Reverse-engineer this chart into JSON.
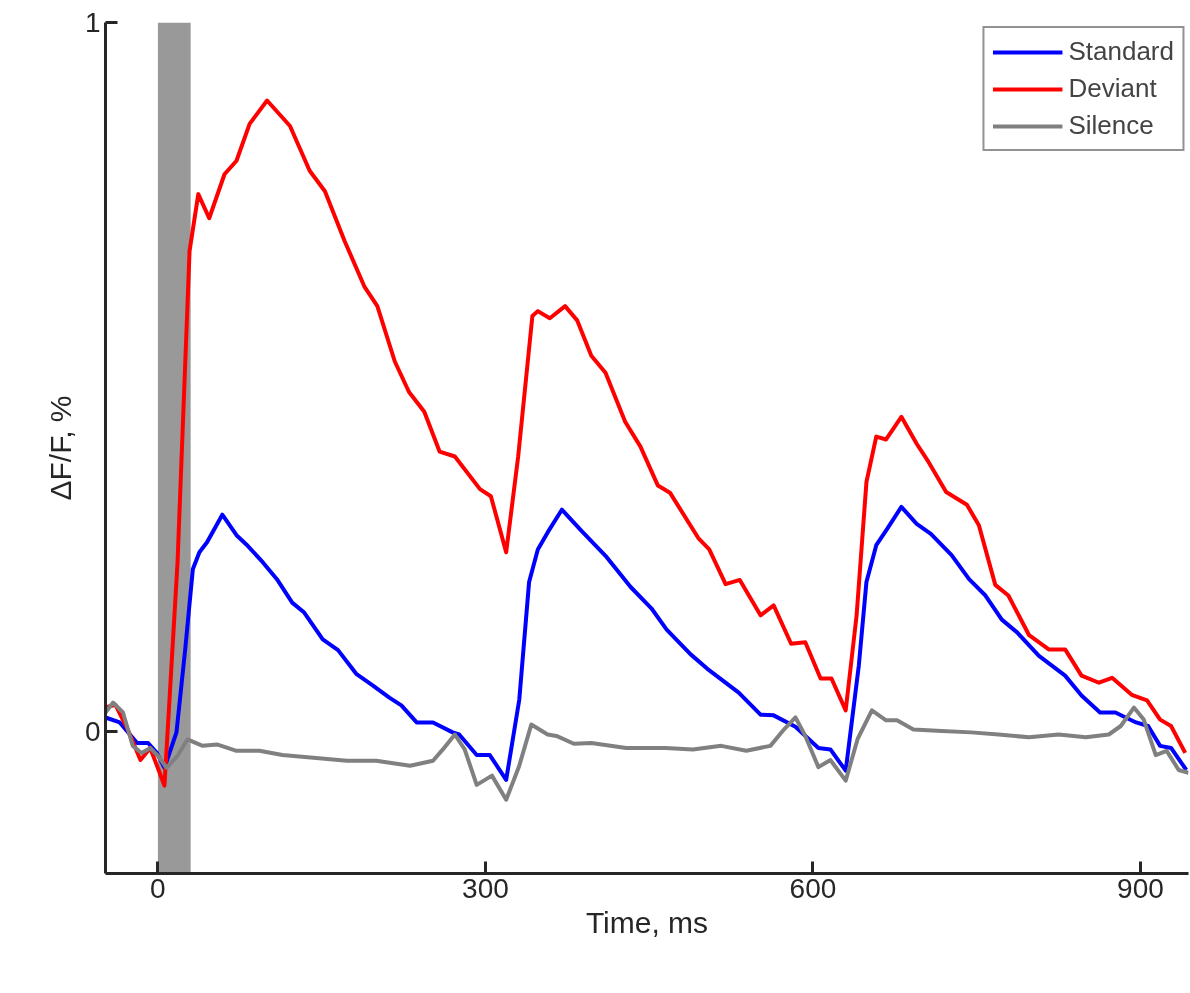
{
  "chart_data": {
    "type": "line",
    "xlabel": "Time, ms",
    "ylabel": "ΔF/F, %",
    "xlim": [
      -48,
      944
    ],
    "ylim": [
      -0.2,
      1
    ],
    "xticks": [
      0,
      300,
      600,
      900
    ],
    "yticks": [
      0,
      1
    ],
    "grid": false,
    "legend": "top right",
    "line_style": "solid",
    "marker": "none",
    "bands": [
      {
        "axis": "x",
        "from": 0,
        "to": 30,
        "label": null,
        "color": "#999999"
      }
    ],
    "series": [
      {
        "name": "Standard",
        "color": "#0000ff",
        "x": [
          -48,
          -35,
          -19,
          -9,
          -1,
          6,
          17,
          25,
          32,
          38,
          45,
          59,
          72,
          81,
          96,
          109,
          123,
          134,
          151,
          165,
          182,
          197,
          212,
          223,
          237,
          252,
          270,
          276,
          292,
          304,
          319,
          331,
          340,
          348,
          357,
          370,
          388,
          410,
          433,
          452,
          466,
          488,
          503,
          532,
          552,
          564,
          584,
          605,
          616,
          630,
          642,
          649,
          658,
          668,
          681,
          695,
          708,
          727,
          743,
          758,
          773,
          787,
          807,
          831,
          846,
          863,
          877,
          896,
          907,
          918,
          928,
          942
        ],
        "values": [
          0.02,
          0.013,
          -0.016,
          -0.016,
          -0.03,
          -0.051,
          -0.001,
          0.116,
          0.229,
          0.253,
          0.267,
          0.306,
          0.277,
          0.264,
          0.239,
          0.215,
          0.182,
          0.168,
          0.13,
          0.115,
          0.081,
          0.065,
          0.048,
          0.037,
          0.013,
          0.013,
          -0.001,
          -0.004,
          -0.033,
          -0.033,
          -0.068,
          0.045,
          0.211,
          0.257,
          0.281,
          0.313,
          0.283,
          0.248,
          0.204,
          0.174,
          0.144,
          0.109,
          0.089,
          0.055,
          0.024,
          0.023,
          0.007,
          -0.023,
          -0.025,
          -0.055,
          0.093,
          0.211,
          0.263,
          0.286,
          0.317,
          0.293,
          0.279,
          0.249,
          0.215,
          0.192,
          0.158,
          0.14,
          0.107,
          0.079,
          0.051,
          0.027,
          0.027,
          0.013,
          0.008,
          -0.02,
          -0.023,
          -0.054
        ]
      },
      {
        "name": "Deviant",
        "color": "#ff0000",
        "x": [
          -48,
          -39,
          -27,
          -16,
          -7,
          6,
          18,
          29,
          37,
          47,
          61,
          72,
          84,
          100,
          121,
          139,
          153,
          171,
          189,
          201,
          217,
          230,
          244,
          258,
          272,
          295,
          305,
          319,
          330,
          343,
          348,
          359,
          373,
          384,
          397,
          410,
          428,
          442,
          458,
          469,
          495,
          505,
          520,
          533,
          552,
          564,
          580,
          593,
          607,
          617,
          630,
          640,
          649,
          658,
          667,
          681,
          695,
          706,
          722,
          741,
          752,
          767,
          779,
          798,
          816,
          831,
          846,
          862,
          874,
          892,
          906,
          918,
          928,
          941
        ],
        "values": [
          0.034,
          0.038,
          0.001,
          -0.04,
          -0.023,
          -0.076,
          0.239,
          0.678,
          0.758,
          0.724,
          0.786,
          0.805,
          0.857,
          0.89,
          0.854,
          0.791,
          0.762,
          0.692,
          0.628,
          0.6,
          0.522,
          0.479,
          0.451,
          0.395,
          0.388,
          0.342,
          0.332,
          0.253,
          0.388,
          0.586,
          0.593,
          0.583,
          0.6,
          0.58,
          0.53,
          0.506,
          0.437,
          0.402,
          0.347,
          0.337,
          0.273,
          0.257,
          0.208,
          0.214,
          0.164,
          0.178,
          0.124,
          0.126,
          0.075,
          0.075,
          0.03,
          0.164,
          0.352,
          0.416,
          0.412,
          0.444,
          0.406,
          0.38,
          0.338,
          0.32,
          0.291,
          0.207,
          0.192,
          0.136,
          0.116,
          0.116,
          0.079,
          0.069,
          0.076,
          0.052,
          0.044,
          0.017,
          0.008,
          -0.03
        ]
      },
      {
        "name": "Silence",
        "color": "#808080",
        "x": [
          -48,
          -41,
          -32,
          -23,
          -15,
          -7,
          0,
          8,
          18,
          27,
          41,
          54,
          72,
          93,
          114,
          145,
          173,
          200,
          231,
          252,
          261,
          272,
          281,
          292,
          306,
          319,
          331,
          342,
          357,
          365,
          381,
          397,
          429,
          465,
          490,
          516,
          539,
          561,
          574,
          584,
          593,
          605,
          616,
          630,
          641,
          654,
          667,
          677,
          692,
          718,
          745,
          770,
          798,
          825,
          850,
          871,
          882,
          894,
          903,
          914,
          924,
          935,
          944
        ],
        "values": [
          0.027,
          0.041,
          0.027,
          -0.02,
          -0.03,
          -0.023,
          -0.034,
          -0.051,
          -0.034,
          -0.011,
          -0.02,
          -0.018,
          -0.027,
          -0.027,
          -0.033,
          -0.037,
          -0.041,
          -0.041,
          -0.048,
          -0.041,
          -0.025,
          -0.004,
          -0.025,
          -0.075,
          -0.062,
          -0.096,
          -0.048,
          0.01,
          -0.004,
          -0.006,
          -0.017,
          -0.016,
          -0.023,
          -0.023,
          -0.025,
          -0.02,
          -0.027,
          -0.02,
          0.004,
          0.02,
          -0.006,
          -0.05,
          -0.04,
          -0.069,
          -0.01,
          0.03,
          0.016,
          0.016,
          0.003,
          0.001,
          -0.001,
          -0.004,
          -0.008,
          -0.004,
          -0.008,
          -0.004,
          0.008,
          0.034,
          0.017,
          -0.033,
          -0.027,
          -0.054,
          -0.058
        ]
      }
    ]
  }
}
